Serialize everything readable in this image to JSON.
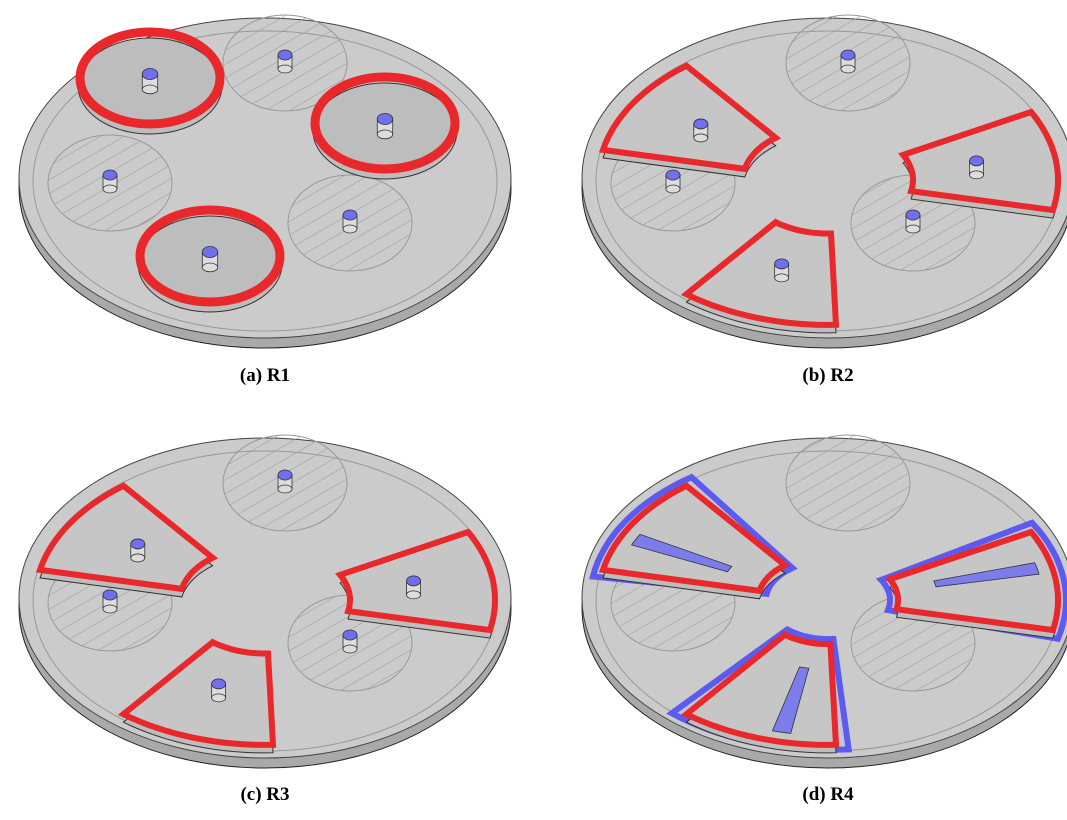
{
  "figure": {
    "panels": [
      {
        "label": "(a)",
        "name": "R1"
      },
      {
        "label": "(b)",
        "name": "R2"
      },
      {
        "label": "(c)",
        "name": "R3"
      },
      {
        "label": "(d)",
        "name": "R4"
      }
    ]
  }
}
